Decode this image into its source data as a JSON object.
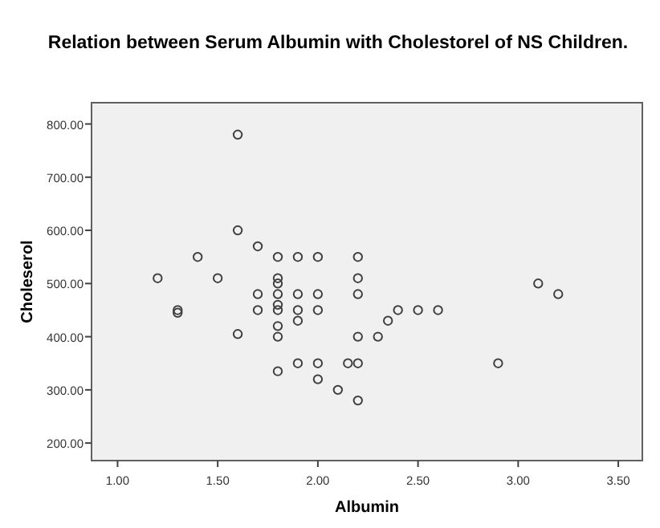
{
  "chart_data": {
    "type": "scatter",
    "title": "Relation between Serum Albumin with Cholestorel of NS Children.",
    "xlabel": "Albumin",
    "ylabel": "Choleserol",
    "xlim": [
      0.87,
      3.62
    ],
    "ylim": [
      167,
      840
    ],
    "xticks": [
      {
        "value": 1,
        "label": "1.00"
      },
      {
        "value": 1.5,
        "label": "1.50"
      },
      {
        "value": 2,
        "label": "2.00"
      },
      {
        "value": 2.5,
        "label": "2.50"
      },
      {
        "value": 3,
        "label": "3.00"
      },
      {
        "value": 3.5,
        "label": "3.50"
      }
    ],
    "yticks": [
      {
        "value": 200,
        "label": "200.00"
      },
      {
        "value": 300,
        "label": "300.00"
      },
      {
        "value": 400,
        "label": "400.00"
      },
      {
        "value": 500,
        "label": "500.00"
      },
      {
        "value": 600,
        "label": "600.00"
      },
      {
        "value": 700,
        "label": "700.00"
      },
      {
        "value": 800,
        "label": "800.00"
      }
    ],
    "marker": "circle",
    "series": [
      {
        "color": "#404040",
        "x": [
          1.6,
          1.6,
          1.7,
          1.4,
          1.8,
          1.9,
          2.0,
          2.2,
          1.2,
          1.5,
          1.8,
          1.8,
          2.2,
          1.7,
          1.8,
          1.9,
          2.0,
          2.2,
          1.3,
          1.3,
          1.7,
          1.8,
          1.8,
          1.9,
          2.0,
          1.8,
          1.9,
          1.6,
          1.8,
          2.2,
          2.3,
          1.9,
          2.0,
          2.15,
          2.2,
          1.8,
          2.0,
          2.1,
          2.2,
          2.35,
          2.4,
          2.5,
          2.6,
          2.9,
          3.1,
          3.2
        ],
        "values": [
          780,
          600,
          570,
          550,
          550,
          550,
          550,
          550,
          510,
          510,
          510,
          500,
          510,
          480,
          480,
          480,
          480,
          480,
          450,
          445,
          450,
          460,
          450,
          450,
          450,
          420,
          430,
          405,
          400,
          400,
          400,
          350,
          350,
          350,
          350,
          335,
          320,
          300,
          280,
          430,
          450,
          450,
          450,
          350,
          500,
          480
        ]
      }
    ]
  }
}
